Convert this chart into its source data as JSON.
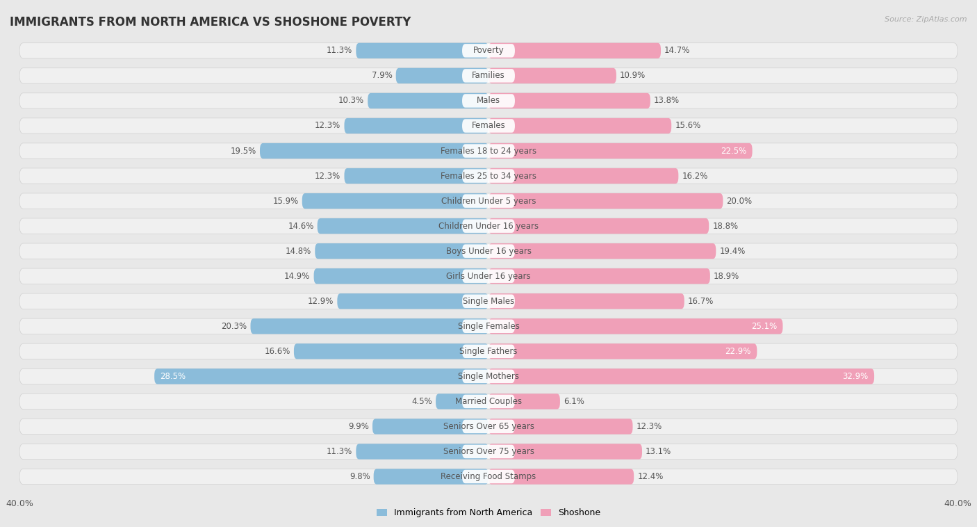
{
  "title": "IMMIGRANTS FROM NORTH AMERICA VS SHOSHONE POVERTY",
  "source": "Source: ZipAtlas.com",
  "categories": [
    "Poverty",
    "Families",
    "Males",
    "Females",
    "Females 18 to 24 years",
    "Females 25 to 34 years",
    "Children Under 5 years",
    "Children Under 16 years",
    "Boys Under 16 years",
    "Girls Under 16 years",
    "Single Males",
    "Single Females",
    "Single Fathers",
    "Single Mothers",
    "Married Couples",
    "Seniors Over 65 years",
    "Seniors Over 75 years",
    "Receiving Food Stamps"
  ],
  "left_values": [
    11.3,
    7.9,
    10.3,
    12.3,
    19.5,
    12.3,
    15.9,
    14.6,
    14.8,
    14.9,
    12.9,
    20.3,
    16.6,
    28.5,
    4.5,
    9.9,
    11.3,
    9.8
  ],
  "right_values": [
    14.7,
    10.9,
    13.8,
    15.6,
    22.5,
    16.2,
    20.0,
    18.8,
    19.4,
    18.9,
    16.7,
    25.1,
    22.9,
    32.9,
    6.1,
    12.3,
    13.1,
    12.4
  ],
  "left_color": "#8bbcda",
  "right_color": "#f0a0b8",
  "left_label": "Immigrants from North America",
  "right_label": "Shoshone",
  "axis_max": 40.0,
  "background_color": "#e8e8e8",
  "row_bg_color": "#f0f0f0",
  "title_fontsize": 12,
  "label_fontsize": 8.5,
  "value_fontsize": 8.5,
  "white_value_threshold": 22.0
}
